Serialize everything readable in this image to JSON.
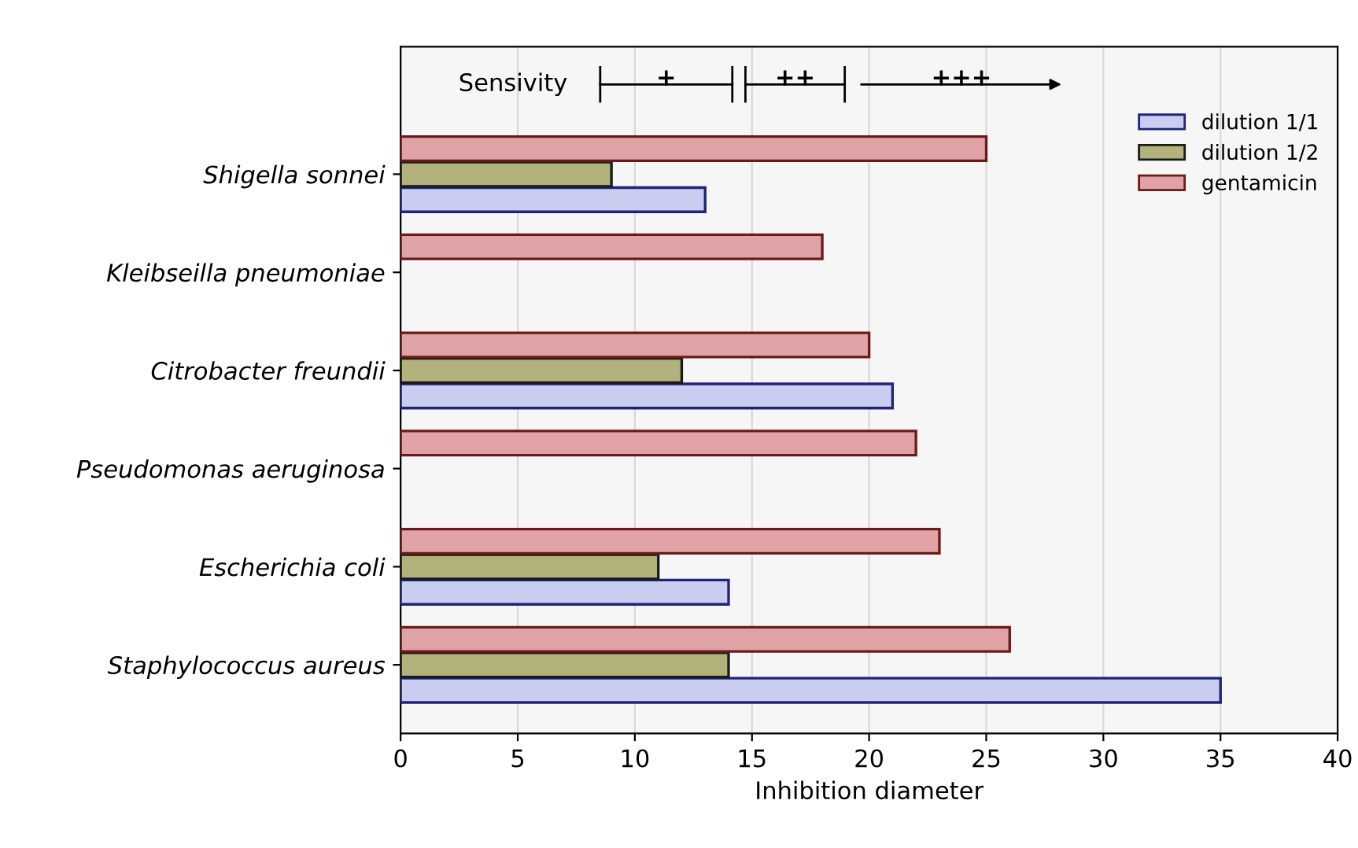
{
  "chart_data": {
    "type": "bar",
    "orientation": "horizontal",
    "xlabel": "Inhibition diameter",
    "categories": [
      "Shigella sonnei",
      "Kleibseilla pneumoniae",
      "Citrobacter freundii",
      "Pseudomonas aeruginosa",
      "Escherichia coli",
      "Staphylococcus aureus"
    ],
    "series": [
      {
        "name": "dilution 1/1",
        "color": "#c9cdef",
        "values": [
          13,
          null,
          21,
          null,
          14,
          35
        ]
      },
      {
        "name": "dilution 1/2",
        "color": "#b3b27c",
        "values": [
          9,
          null,
          12,
          null,
          11,
          14
        ]
      },
      {
        "name": "gentamicin",
        "color": "#dfa3a5",
        "values": [
          25,
          18,
          20,
          22,
          23,
          26
        ]
      }
    ],
    "xlim": [
      0,
      40
    ],
    "xticks": [
      0,
      5,
      10,
      15,
      20,
      25,
      30,
      35,
      40
    ],
    "grid": "x",
    "legend": "top right",
    "annotations": [
      "Sensivity",
      "+",
      "++",
      "+++"
    ]
  }
}
